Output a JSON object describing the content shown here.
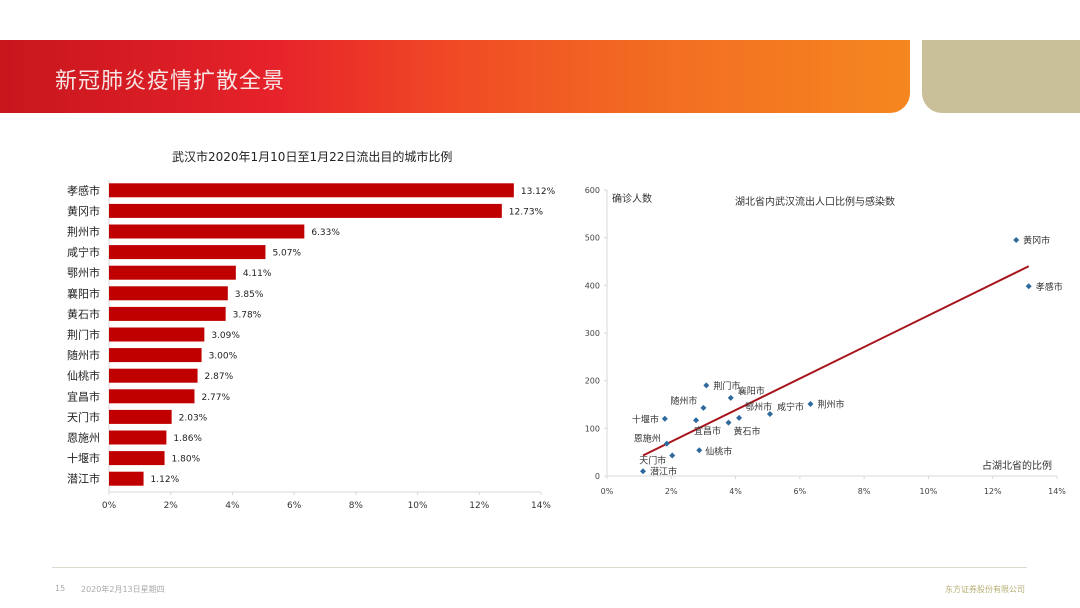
{
  "header": {
    "title": "新冠肺炎疫情扩散全景",
    "colors": {
      "banner_start": "#c8161d",
      "banner_end": "#f5871f",
      "tan": "#c9c09a"
    }
  },
  "footer": {
    "page": "15",
    "date": "2020年2月13日星期四",
    "company": "东方证券股份有限公司"
  },
  "chart_data": [
    {
      "type": "bar",
      "orientation": "horizontal",
      "title": "武汉市2020年1月10日至1月22日流出目的城市比例",
      "categories": [
        "孝感市",
        "黄冈市",
        "荆州市",
        "咸宁市",
        "鄂州市",
        "襄阳市",
        "黄石市",
        "荆门市",
        "随州市",
        "仙桃市",
        "宜昌市",
        "天门市",
        "恩施州",
        "十堰市",
        "潜江市"
      ],
      "values": [
        13.12,
        12.73,
        6.33,
        5.07,
        4.11,
        3.85,
        3.78,
        3.09,
        3.0,
        2.87,
        2.77,
        2.03,
        1.86,
        1.8,
        1.12
      ],
      "value_labels": [
        "13.12%",
        "12.73%",
        "6.33%",
        "5.07%",
        "4.11%",
        "3.85%",
        "3.78%",
        "3.09%",
        "3.00%",
        "2.87%",
        "2.77%",
        "2.03%",
        "1.86%",
        "1.80%",
        "1.12%"
      ],
      "xlim": [
        0,
        14
      ],
      "xticks": [
        "0%",
        "2%",
        "4%",
        "6%",
        "8%",
        "10%",
        "12%",
        "14%"
      ],
      "xlabel": "",
      "ylabel": "",
      "bar_color": "#c00000",
      "grid": false
    },
    {
      "type": "scatter",
      "title": "湖北省内武汉流出人口比例与感染数",
      "xlabel": "占湖北省的比例",
      "ylabel": "确诊人数",
      "xlim": [
        0,
        14
      ],
      "ylim": [
        0,
        600
      ],
      "xticks": [
        "0%",
        "2%",
        "4%",
        "6%",
        "8%",
        "10%",
        "12%",
        "14%"
      ],
      "yticks": [
        "0",
        "100",
        "200",
        "300",
        "400",
        "500",
        "600"
      ],
      "points": [
        {
          "label": "黄冈市",
          "x": 12.73,
          "y": 495
        },
        {
          "label": "孝感市",
          "x": 13.12,
          "y": 398
        },
        {
          "label": "荆州市",
          "x": 6.33,
          "y": 151
        },
        {
          "label": "咸宁市",
          "x": 5.07,
          "y": 130
        },
        {
          "label": "鄂州市",
          "x": 4.11,
          "y": 122
        },
        {
          "label": "襄阳市",
          "x": 3.85,
          "y": 164
        },
        {
          "label": "黄石市",
          "x": 3.78,
          "y": 112
        },
        {
          "label": "荆门市",
          "x": 3.09,
          "y": 190
        },
        {
          "label": "随州市",
          "x": 3.0,
          "y": 143
        },
        {
          "label": "仙桃市",
          "x": 2.87,
          "y": 54
        },
        {
          "label": "宜昌市",
          "x": 2.77,
          "y": 117
        },
        {
          "label": "天门市",
          "x": 2.03,
          "y": 43
        },
        {
          "label": "恩施州",
          "x": 1.86,
          "y": 68
        },
        {
          "label": "十堰市",
          "x": 1.8,
          "y": 120
        },
        {
          "label": "潜江市",
          "x": 1.12,
          "y": 10
        }
      ],
      "trendline": {
        "x_start": 1.12,
        "y_start": 43,
        "x_end": 13.12,
        "y_end": 440
      },
      "point_color": "#2e6a9e",
      "trend_color": "#a8141c",
      "grid": false,
      "legend": "none"
    }
  ]
}
